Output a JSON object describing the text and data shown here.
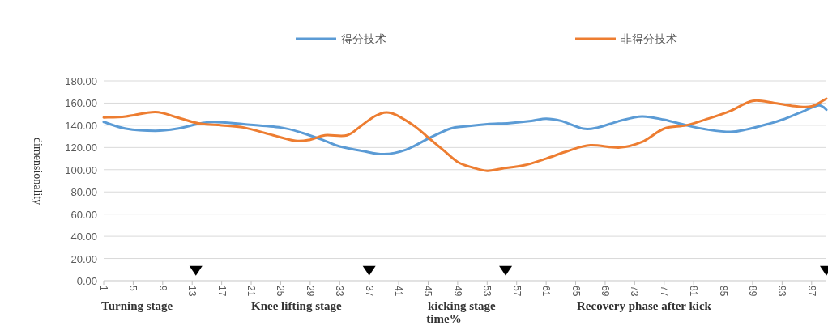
{
  "chart_data": {
    "type": "line",
    "xlabel": "time%",
    "ylabel": "dimensionality",
    "xlim": [
      1,
      99
    ],
    "xticks": [
      1,
      5,
      9,
      13,
      17,
      21,
      25,
      29,
      33,
      37,
      41,
      45,
      49,
      53,
      57,
      61,
      65,
      69,
      73,
      77,
      81,
      85,
      89,
      93,
      97
    ],
    "ylim": [
      0,
      180
    ],
    "yticks": [
      {
        "value": 0,
        "label": "0.00"
      },
      {
        "value": 20,
        "label": "20.00"
      },
      {
        "value": 40,
        "label": "40.00"
      },
      {
        "value": 60,
        "label": "60.00"
      },
      {
        "value": 80,
        "label": "80.00"
      },
      {
        "value": 100,
        "label": "100.00"
      },
      {
        "value": 120,
        "label": "120.00"
      },
      {
        "value": 140,
        "label": "140.00"
      },
      {
        "value": 160,
        "label": "160.00"
      },
      {
        "value": 180,
        "label": "180.00"
      }
    ],
    "grid": "y",
    "legend": "top",
    "marker": "none",
    "line_style": "solid",
    "series": [
      {
        "name": "得分技术",
        "color": "#5b9bd5",
        "x": [
          1,
          4,
          8,
          11,
          14,
          16,
          20,
          25,
          28,
          31,
          33,
          36,
          39,
          42,
          45,
          48,
          50,
          53,
          56,
          59,
          61,
          63,
          66,
          68,
          71,
          74,
          77,
          80,
          83,
          86,
          88,
          91,
          93,
          96,
          98,
          99
        ],
        "values": [
          143,
          137,
          135,
          137,
          141.5,
          143,
          141,
          138,
          133,
          126,
          121,
          117,
          114,
          118,
          128,
          137,
          139,
          141,
          142,
          144,
          146,
          144,
          137,
          138,
          144,
          148,
          145,
          140,
          136,
          134,
          136,
          141,
          145,
          153,
          158,
          154
        ]
      },
      {
        "name": "非得分技术",
        "color": "#ed7d31",
        "x": [
          1,
          4,
          8,
          11,
          14,
          17,
          20,
          24,
          27,
          29,
          31,
          34,
          36,
          38,
          40,
          43,
          45,
          47,
          49,
          51,
          53,
          55,
          58,
          61,
          64,
          67,
          71,
          74,
          77,
          80,
          83,
          86,
          89,
          92,
          95,
          97,
          99
        ],
        "values": [
          147,
          148,
          152,
          147,
          141.5,
          140,
          138,
          131,
          126,
          127,
          131,
          131,
          140,
          149,
          151,
          140,
          129,
          118,
          107,
          102,
          99,
          101,
          104,
          110,
          117,
          122,
          120,
          125,
          137,
          140,
          146,
          153,
          162,
          160,
          157,
          157,
          164
        ]
      },
      {
        "type": "scatter",
        "color": "#000000",
        "marker": "triangle",
        "x": [
          13.5,
          37,
          55.5,
          99
        ],
        "values": [
          9,
          9,
          9,
          9
        ]
      }
    ],
    "annotations": [
      "Turning stage",
      "Knee lifting stage",
      "kicking stage",
      "Recovery phase after kick"
    ]
  }
}
